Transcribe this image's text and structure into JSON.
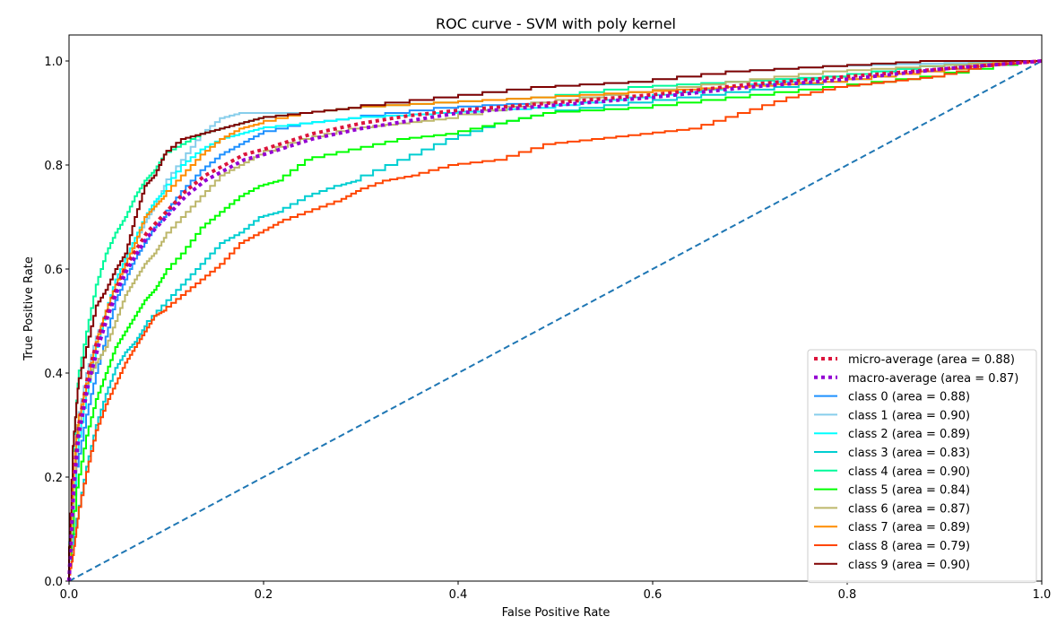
{
  "chart_data": {
    "type": "line",
    "title": "ROC curve - SVM with poly kernel",
    "xlabel": "False Positive Rate",
    "ylabel": "True Positive Rate",
    "xlim": [
      0,
      1
    ],
    "ylim": [
      0,
      1.05
    ],
    "x_ticks": [
      "0.0",
      "0.2",
      "0.4",
      "0.6",
      "0.8",
      "1.0"
    ],
    "y_ticks": [
      "0.0",
      "0.2",
      "0.4",
      "0.6",
      "0.8",
      "1.0"
    ],
    "grid": false,
    "legend_position": "lower-right",
    "series": [
      {
        "name": "micro-average (area = 0.88)",
        "color": "#dc143c",
        "style": "dotted",
        "x": [
          0,
          0.005,
          0.01,
          0.02,
          0.03,
          0.04,
          0.05,
          0.06,
          0.07,
          0.08,
          0.09,
          0.1,
          0.12,
          0.14,
          0.16,
          0.18,
          0.2,
          0.25,
          0.3,
          0.35,
          0.4,
          0.5,
          0.6,
          0.7,
          0.8,
          0.9,
          1.0
        ],
        "y": [
          0,
          0.2,
          0.3,
          0.4,
          0.47,
          0.52,
          0.57,
          0.61,
          0.64,
          0.67,
          0.69,
          0.71,
          0.75,
          0.78,
          0.8,
          0.82,
          0.83,
          0.86,
          0.88,
          0.895,
          0.905,
          0.92,
          0.935,
          0.955,
          0.97,
          0.985,
          1.0
        ]
      },
      {
        "name": "macro-average (area = 0.87)",
        "color": "#9400d3",
        "style": "dotted",
        "x": [
          0,
          0.005,
          0.01,
          0.02,
          0.03,
          0.04,
          0.05,
          0.06,
          0.07,
          0.08,
          0.09,
          0.1,
          0.12,
          0.14,
          0.16,
          0.18,
          0.2,
          0.25,
          0.3,
          0.35,
          0.4,
          0.5,
          0.6,
          0.7,
          0.8,
          0.9,
          1.0
        ],
        "y": [
          0,
          0.18,
          0.28,
          0.38,
          0.45,
          0.51,
          0.56,
          0.6,
          0.63,
          0.66,
          0.68,
          0.7,
          0.74,
          0.77,
          0.79,
          0.81,
          0.82,
          0.85,
          0.87,
          0.885,
          0.9,
          0.915,
          0.93,
          0.95,
          0.965,
          0.985,
          1.0
        ]
      },
      {
        "name": "class 0 (area = 0.88)",
        "color": "#1e90ff",
        "style": "solid",
        "x": [
          0,
          0.01,
          0.02,
          0.03,
          0.04,
          0.05,
          0.06,
          0.07,
          0.08,
          0.09,
          0.1,
          0.12,
          0.14,
          0.16,
          0.18,
          0.2,
          0.25,
          0.3,
          0.4,
          0.5,
          0.6,
          0.7,
          0.8,
          0.9,
          1.0
        ],
        "y": [
          0,
          0.22,
          0.32,
          0.4,
          0.47,
          0.54,
          0.58,
          0.62,
          0.65,
          0.68,
          0.7,
          0.75,
          0.79,
          0.82,
          0.84,
          0.86,
          0.88,
          0.89,
          0.91,
          0.92,
          0.94,
          0.96,
          0.97,
          0.99,
          1.0
        ]
      },
      {
        "name": "class 1 (area = 0.90)",
        "color": "#87ceeb",
        "style": "solid",
        "x": [
          0,
          0.01,
          0.02,
          0.03,
          0.04,
          0.05,
          0.06,
          0.07,
          0.08,
          0.09,
          0.1,
          0.12,
          0.14,
          0.16,
          0.18,
          0.2,
          0.25,
          0.3,
          0.4,
          0.5,
          0.6,
          0.7,
          0.8,
          0.9,
          1.0
        ],
        "y": [
          0,
          0.3,
          0.4,
          0.47,
          0.52,
          0.57,
          0.61,
          0.65,
          0.69,
          0.72,
          0.76,
          0.81,
          0.86,
          0.89,
          0.9,
          0.9,
          0.9,
          0.91,
          0.93,
          0.95,
          0.96,
          0.98,
          0.99,
          0.995,
          1.0
        ]
      },
      {
        "name": "class 2 (area = 0.89)",
        "color": "#00ffff",
        "style": "solid",
        "x": [
          0,
          0.01,
          0.02,
          0.03,
          0.04,
          0.05,
          0.06,
          0.07,
          0.08,
          0.09,
          0.1,
          0.12,
          0.14,
          0.16,
          0.18,
          0.2,
          0.25,
          0.3,
          0.4,
          0.5,
          0.6,
          0.7,
          0.8,
          0.9,
          1.0
        ],
        "y": [
          0,
          0.25,
          0.36,
          0.45,
          0.52,
          0.58,
          0.62,
          0.66,
          0.7,
          0.73,
          0.75,
          0.8,
          0.83,
          0.85,
          0.86,
          0.87,
          0.88,
          0.89,
          0.9,
          0.91,
          0.93,
          0.95,
          0.97,
          0.99,
          1.0
        ]
      },
      {
        "name": "class 3 (area = 0.83)",
        "color": "#00ced1",
        "style": "solid",
        "x": [
          0,
          0.01,
          0.02,
          0.03,
          0.04,
          0.05,
          0.06,
          0.07,
          0.08,
          0.1,
          0.12,
          0.14,
          0.16,
          0.18,
          0.2,
          0.22,
          0.25,
          0.28,
          0.3,
          0.35,
          0.4,
          0.45,
          0.5,
          0.6,
          0.7,
          0.8,
          0.9,
          1.0
        ],
        "y": [
          0,
          0.12,
          0.22,
          0.3,
          0.36,
          0.41,
          0.44,
          0.46,
          0.49,
          0.53,
          0.57,
          0.61,
          0.65,
          0.67,
          0.7,
          0.71,
          0.74,
          0.76,
          0.77,
          0.81,
          0.85,
          0.88,
          0.9,
          0.92,
          0.94,
          0.96,
          0.98,
          1.0
        ]
      },
      {
        "name": "class 4 (area = 0.90)",
        "color": "#00fa9a",
        "style": "solid",
        "x": [
          0,
          0.005,
          0.01,
          0.02,
          0.03,
          0.04,
          0.05,
          0.06,
          0.07,
          0.08,
          0.09,
          0.1,
          0.12,
          0.14,
          0.16,
          0.18,
          0.2,
          0.25,
          0.3,
          0.4,
          0.5,
          0.6,
          0.7,
          0.8,
          0.9,
          1.0
        ],
        "y": [
          0,
          0.25,
          0.38,
          0.48,
          0.57,
          0.63,
          0.67,
          0.7,
          0.74,
          0.77,
          0.79,
          0.82,
          0.84,
          0.86,
          0.87,
          0.88,
          0.89,
          0.9,
          0.91,
          0.92,
          0.93,
          0.95,
          0.96,
          0.97,
          0.99,
          1.0
        ]
      },
      {
        "name": "class 5 (area = 0.84)",
        "color": "#00ff00",
        "style": "solid",
        "x": [
          0,
          0.01,
          0.02,
          0.03,
          0.04,
          0.05,
          0.06,
          0.07,
          0.08,
          0.09,
          0.1,
          0.12,
          0.14,
          0.16,
          0.18,
          0.2,
          0.22,
          0.25,
          0.3,
          0.35,
          0.4,
          0.45,
          0.5,
          0.6,
          0.7,
          0.8,
          0.9,
          1.0
        ],
        "y": [
          0,
          0.18,
          0.28,
          0.35,
          0.4,
          0.45,
          0.48,
          0.51,
          0.54,
          0.56,
          0.59,
          0.63,
          0.68,
          0.71,
          0.74,
          0.76,
          0.77,
          0.81,
          0.83,
          0.85,
          0.86,
          0.88,
          0.9,
          0.91,
          0.93,
          0.95,
          0.97,
          1.0
        ]
      },
      {
        "name": "class 6 (area = 0.87)",
        "color": "#bdb76b",
        "style": "solid",
        "x": [
          0,
          0.01,
          0.02,
          0.03,
          0.04,
          0.05,
          0.06,
          0.07,
          0.08,
          0.09,
          0.1,
          0.12,
          0.14,
          0.16,
          0.18,
          0.2,
          0.25,
          0.3,
          0.35,
          0.4,
          0.5,
          0.6,
          0.7,
          0.8,
          0.9,
          1.0
        ],
        "y": [
          0,
          0.28,
          0.38,
          0.42,
          0.45,
          0.5,
          0.55,
          0.58,
          0.61,
          0.63,
          0.66,
          0.7,
          0.74,
          0.78,
          0.8,
          0.82,
          0.85,
          0.87,
          0.88,
          0.89,
          0.92,
          0.94,
          0.96,
          0.98,
          0.99,
          1.0
        ]
      },
      {
        "name": "class 7 (area = 0.89)",
        "color": "#ff8c00",
        "style": "solid",
        "x": [
          0,
          0.005,
          0.01,
          0.02,
          0.03,
          0.04,
          0.05,
          0.06,
          0.07,
          0.08,
          0.09,
          0.1,
          0.12,
          0.14,
          0.16,
          0.18,
          0.2,
          0.25,
          0.3,
          0.4,
          0.5,
          0.6,
          0.7,
          0.8,
          0.9,
          1.0
        ],
        "y": [
          0,
          0.2,
          0.3,
          0.38,
          0.46,
          0.52,
          0.57,
          0.61,
          0.65,
          0.7,
          0.72,
          0.74,
          0.78,
          0.82,
          0.85,
          0.87,
          0.88,
          0.9,
          0.91,
          0.92,
          0.93,
          0.94,
          0.95,
          0.96,
          0.98,
          1.0
        ]
      },
      {
        "name": "class 8 (area = 0.79)",
        "color": "#ff4500",
        "style": "solid",
        "x": [
          0,
          0.005,
          0.01,
          0.02,
          0.03,
          0.04,
          0.05,
          0.06,
          0.07,
          0.08,
          0.09,
          0.1,
          0.12,
          0.14,
          0.16,
          0.18,
          0.2,
          0.22,
          0.25,
          0.28,
          0.3,
          0.33,
          0.36,
          0.4,
          0.45,
          0.5,
          0.55,
          0.6,
          0.65,
          0.7,
          0.75,
          0.8,
          0.85,
          0.9,
          0.95,
          1.0
        ],
        "y": [
          0,
          0.05,
          0.12,
          0.21,
          0.29,
          0.34,
          0.38,
          0.42,
          0.45,
          0.48,
          0.51,
          0.52,
          0.55,
          0.58,
          0.61,
          0.65,
          0.67,
          0.69,
          0.71,
          0.73,
          0.75,
          0.77,
          0.78,
          0.8,
          0.81,
          0.84,
          0.85,
          0.86,
          0.87,
          0.9,
          0.93,
          0.95,
          0.96,
          0.97,
          0.99,
          1.0
        ]
      },
      {
        "name": "class 9 (area = 0.90)",
        "color": "#800000",
        "style": "solid",
        "x": [
          0,
          0.005,
          0.01,
          0.02,
          0.03,
          0.04,
          0.05,
          0.06,
          0.07,
          0.08,
          0.09,
          0.1,
          0.12,
          0.14,
          0.16,
          0.18,
          0.2,
          0.25,
          0.3,
          0.4,
          0.5,
          0.6,
          0.7,
          0.8,
          0.9,
          1.0
        ],
        "y": [
          0,
          0.26,
          0.37,
          0.45,
          0.53,
          0.56,
          0.6,
          0.63,
          0.7,
          0.76,
          0.78,
          0.82,
          0.85,
          0.86,
          0.87,
          0.88,
          0.89,
          0.9,
          0.91,
          0.93,
          0.95,
          0.96,
          0.98,
          0.99,
          1.0,
          1.0
        ]
      },
      {
        "name": "",
        "color": "#1f77b4",
        "style": "dashed",
        "x": [
          0,
          1
        ],
        "y": [
          0,
          1
        ]
      }
    ]
  }
}
